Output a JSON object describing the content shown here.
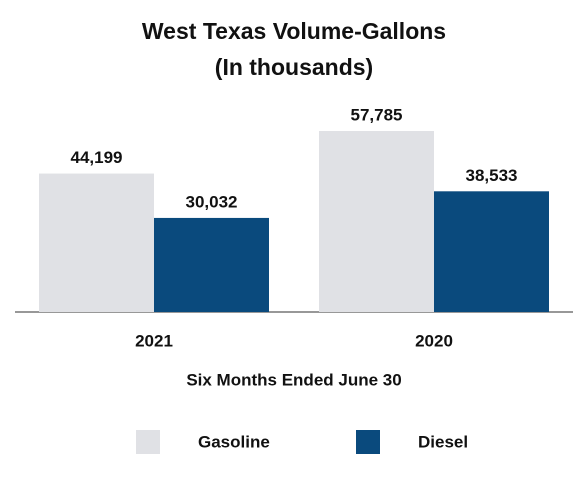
{
  "chart_data": {
    "type": "bar",
    "title": "West Texas Volume-Gallons",
    "subtitle": "(In thousands)",
    "xlabel": "Six Months Ended June 30",
    "categories": [
      "2021",
      "2020"
    ],
    "series": [
      {
        "name": "Gasoline",
        "color": "#e0e1e5",
        "values": [
          44199,
          57785
        ],
        "value_labels": [
          "44,199",
          "57,785"
        ]
      },
      {
        "name": "Diesel",
        "color": "#0a4a7d",
        "values": [
          30032,
          38533
        ],
        "value_labels": [
          "30,032",
          "38,533"
        ]
      }
    ],
    "legend": "bottom"
  }
}
